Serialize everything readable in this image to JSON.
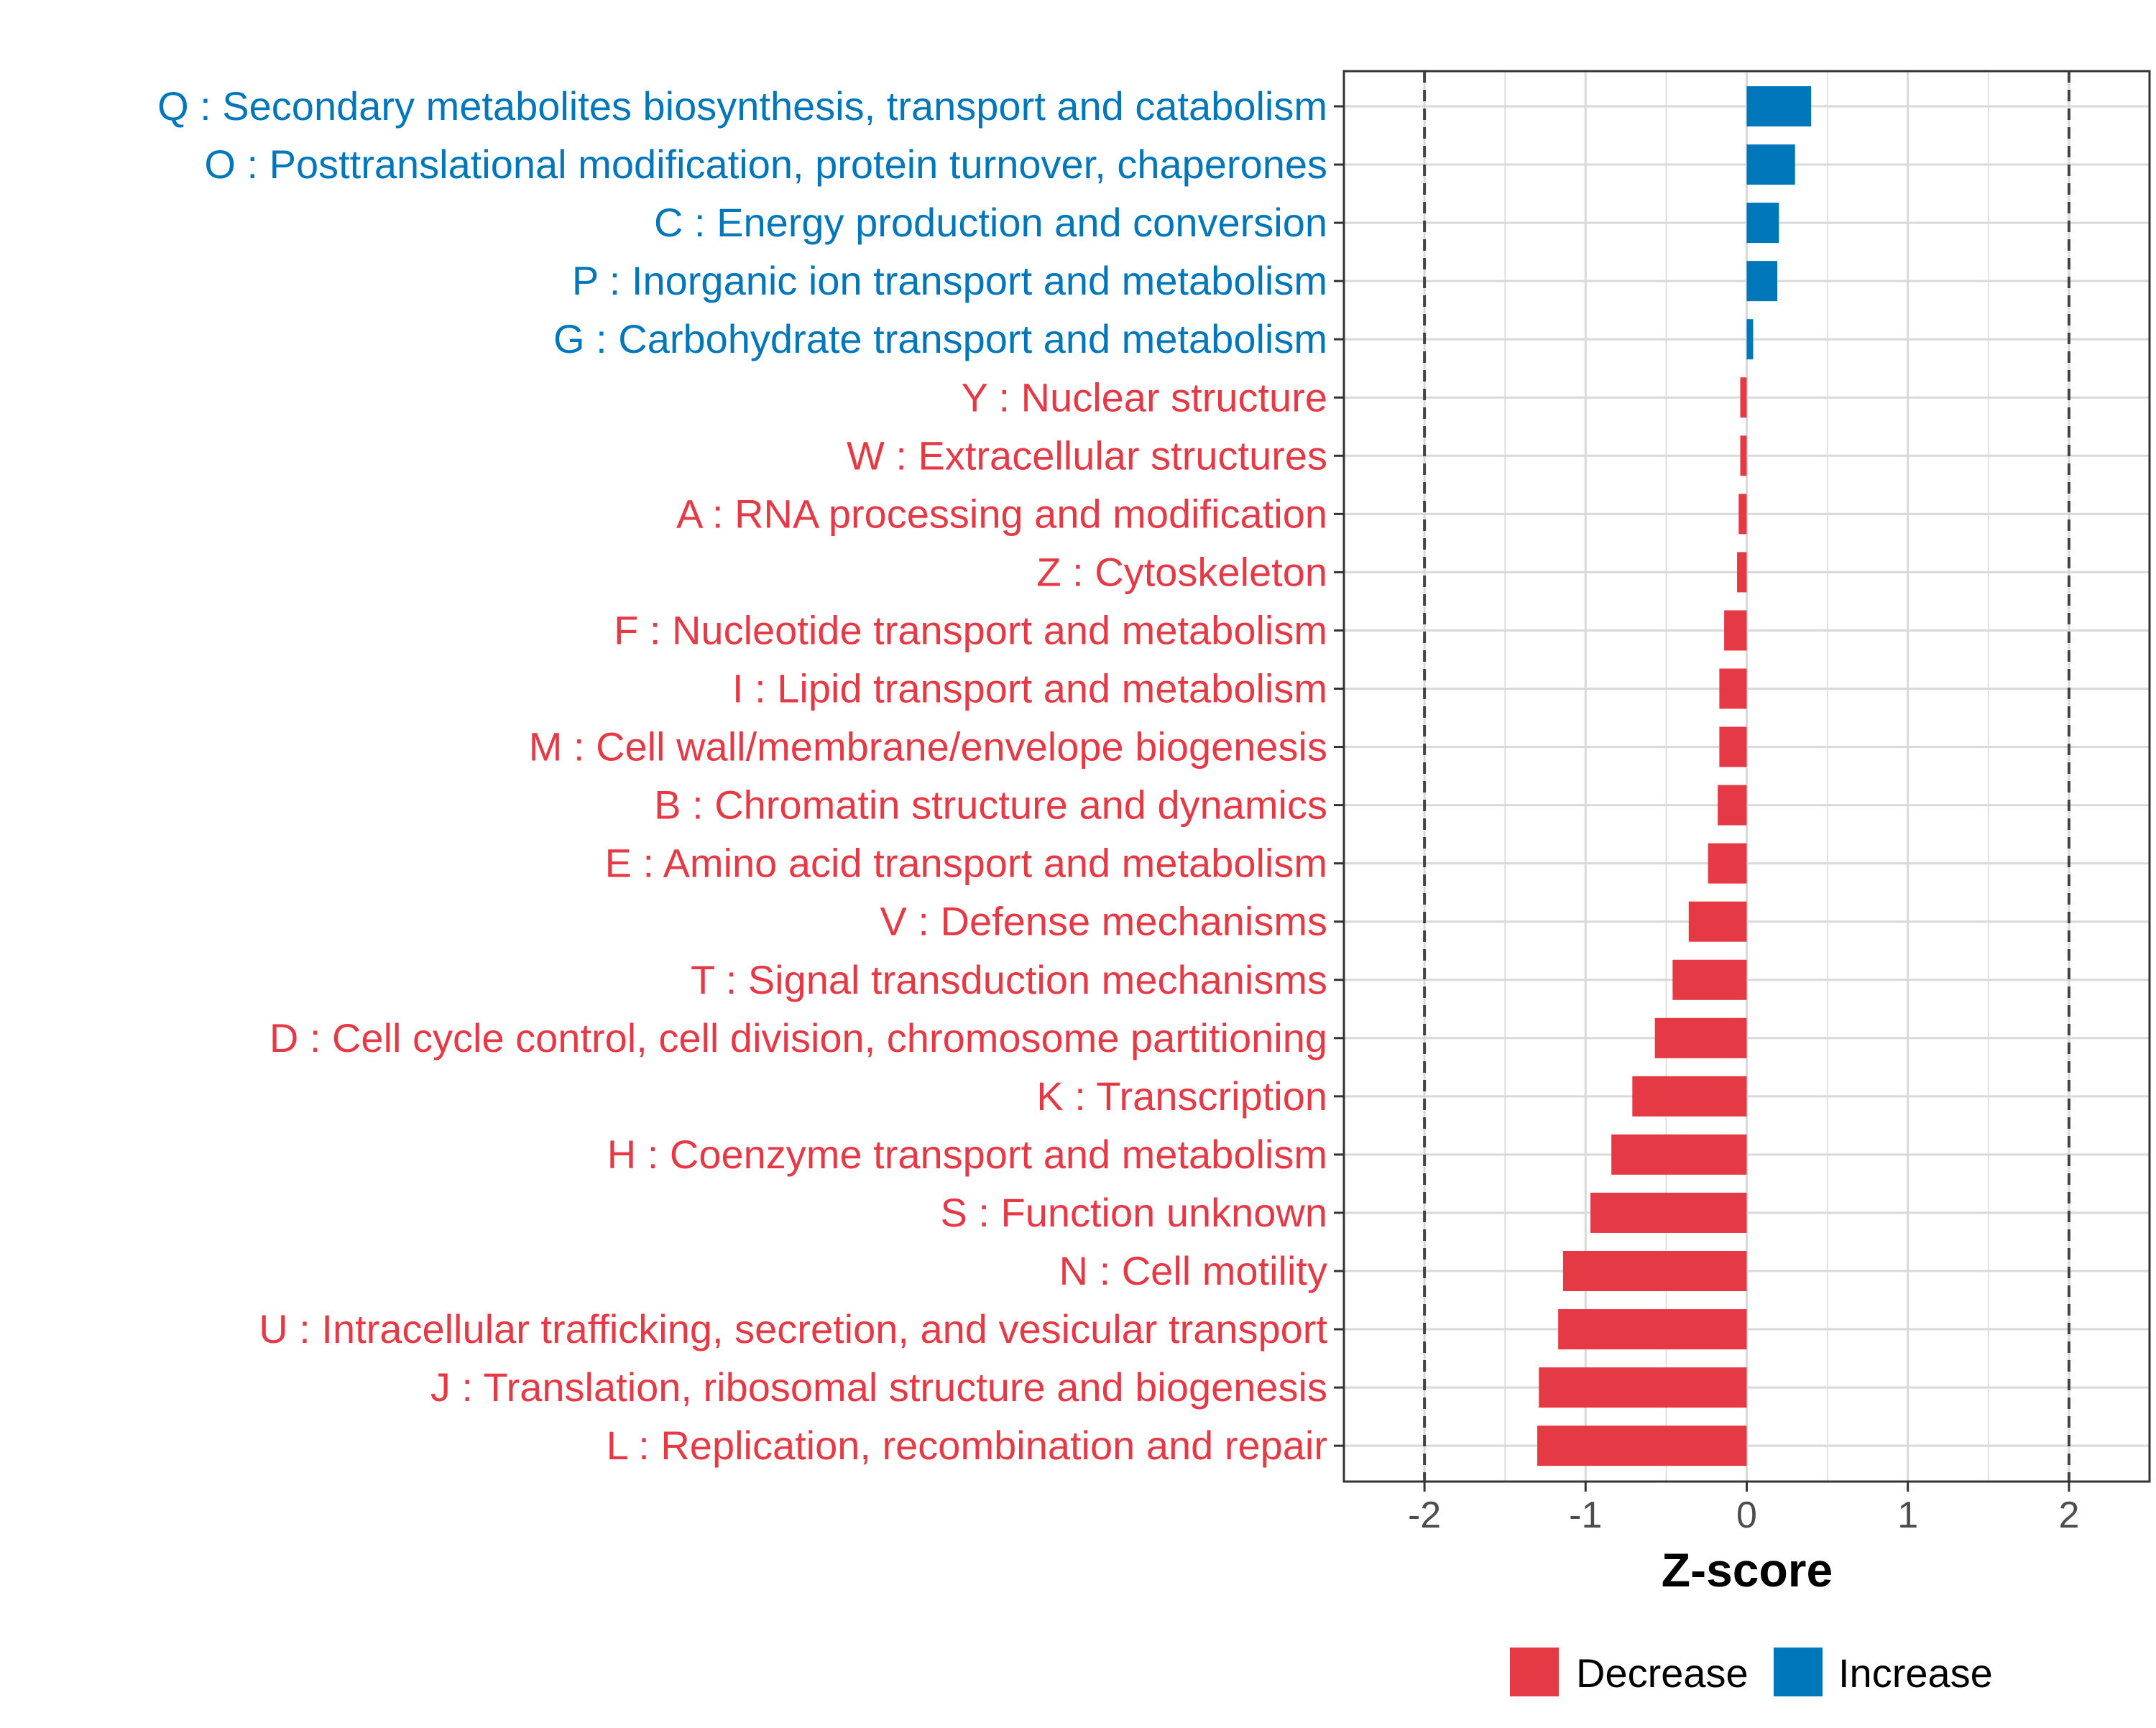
{
  "chart_data": {
    "type": "bar",
    "orientation": "horizontal",
    "xlabel": "Z-score",
    "xlim": [
      -2.5,
      2.5
    ],
    "xticks": [
      -2,
      -1,
      0,
      1,
      2
    ],
    "xtick_labels": [
      "-2",
      "-1",
      "0",
      "1",
      "2"
    ],
    "reference_lines": [
      -2,
      2
    ],
    "grid": true,
    "legend_position": "bottom",
    "categories": [
      "Q : Secondary metabolites biosynthesis, transport and catabolism",
      "O : Posttranslational modification, protein turnover, chaperones",
      "C : Energy production and conversion",
      "P : Inorganic ion transport and metabolism",
      "G : Carbohydrate transport and metabolism",
      "Y : Nuclear structure",
      "W : Extracellular structures",
      "A : RNA processing and modification",
      "Z : Cytoskeleton",
      "F : Nucleotide transport and metabolism",
      "I : Lipid transport and metabolism",
      "M : Cell wall/membrane/envelope biogenesis",
      "B : Chromatin structure and dynamics",
      "E : Amino acid transport and metabolism",
      "V : Defense mechanisms",
      "T : Signal transduction mechanisms",
      "D : Cell cycle control, cell division, chromosome partitioning",
      "K : Transcription",
      "H : Coenzyme transport and metabolism",
      "S : Function unknown",
      "N : Cell motility",
      "U : Intracellular trafficking, secretion, and vesicular transport",
      "J : Translation, ribosomal structure and biogenesis",
      "L : Replication, recombination and repair"
    ],
    "values": [
      0.4,
      0.3,
      0.2,
      0.19,
      0.04,
      -0.04,
      -0.04,
      -0.05,
      -0.06,
      -0.14,
      -0.17,
      -0.17,
      -0.18,
      -0.24,
      -0.36,
      -0.46,
      -0.57,
      -0.71,
      -0.84,
      -0.97,
      -1.14,
      -1.17,
      -1.29,
      -1.3
    ],
    "groups": [
      "Increase",
      "Increase",
      "Increase",
      "Increase",
      "Increase",
      "Decrease",
      "Decrease",
      "Decrease",
      "Decrease",
      "Decrease",
      "Decrease",
      "Decrease",
      "Decrease",
      "Decrease",
      "Decrease",
      "Decrease",
      "Decrease",
      "Decrease",
      "Decrease",
      "Decrease",
      "Decrease",
      "Decrease",
      "Decrease",
      "Decrease"
    ],
    "legend": [
      {
        "name": "Decrease",
        "color": "#E63946"
      },
      {
        "name": "Increase",
        "color": "#0077BB"
      }
    ]
  },
  "colors": {
    "Decrease": "#E63946",
    "Increase": "#0077BB",
    "grid": "#d9d9d9",
    "reference_line": "#444444",
    "panel_border": "#333333",
    "tick_text": "#4d4d4d"
  }
}
